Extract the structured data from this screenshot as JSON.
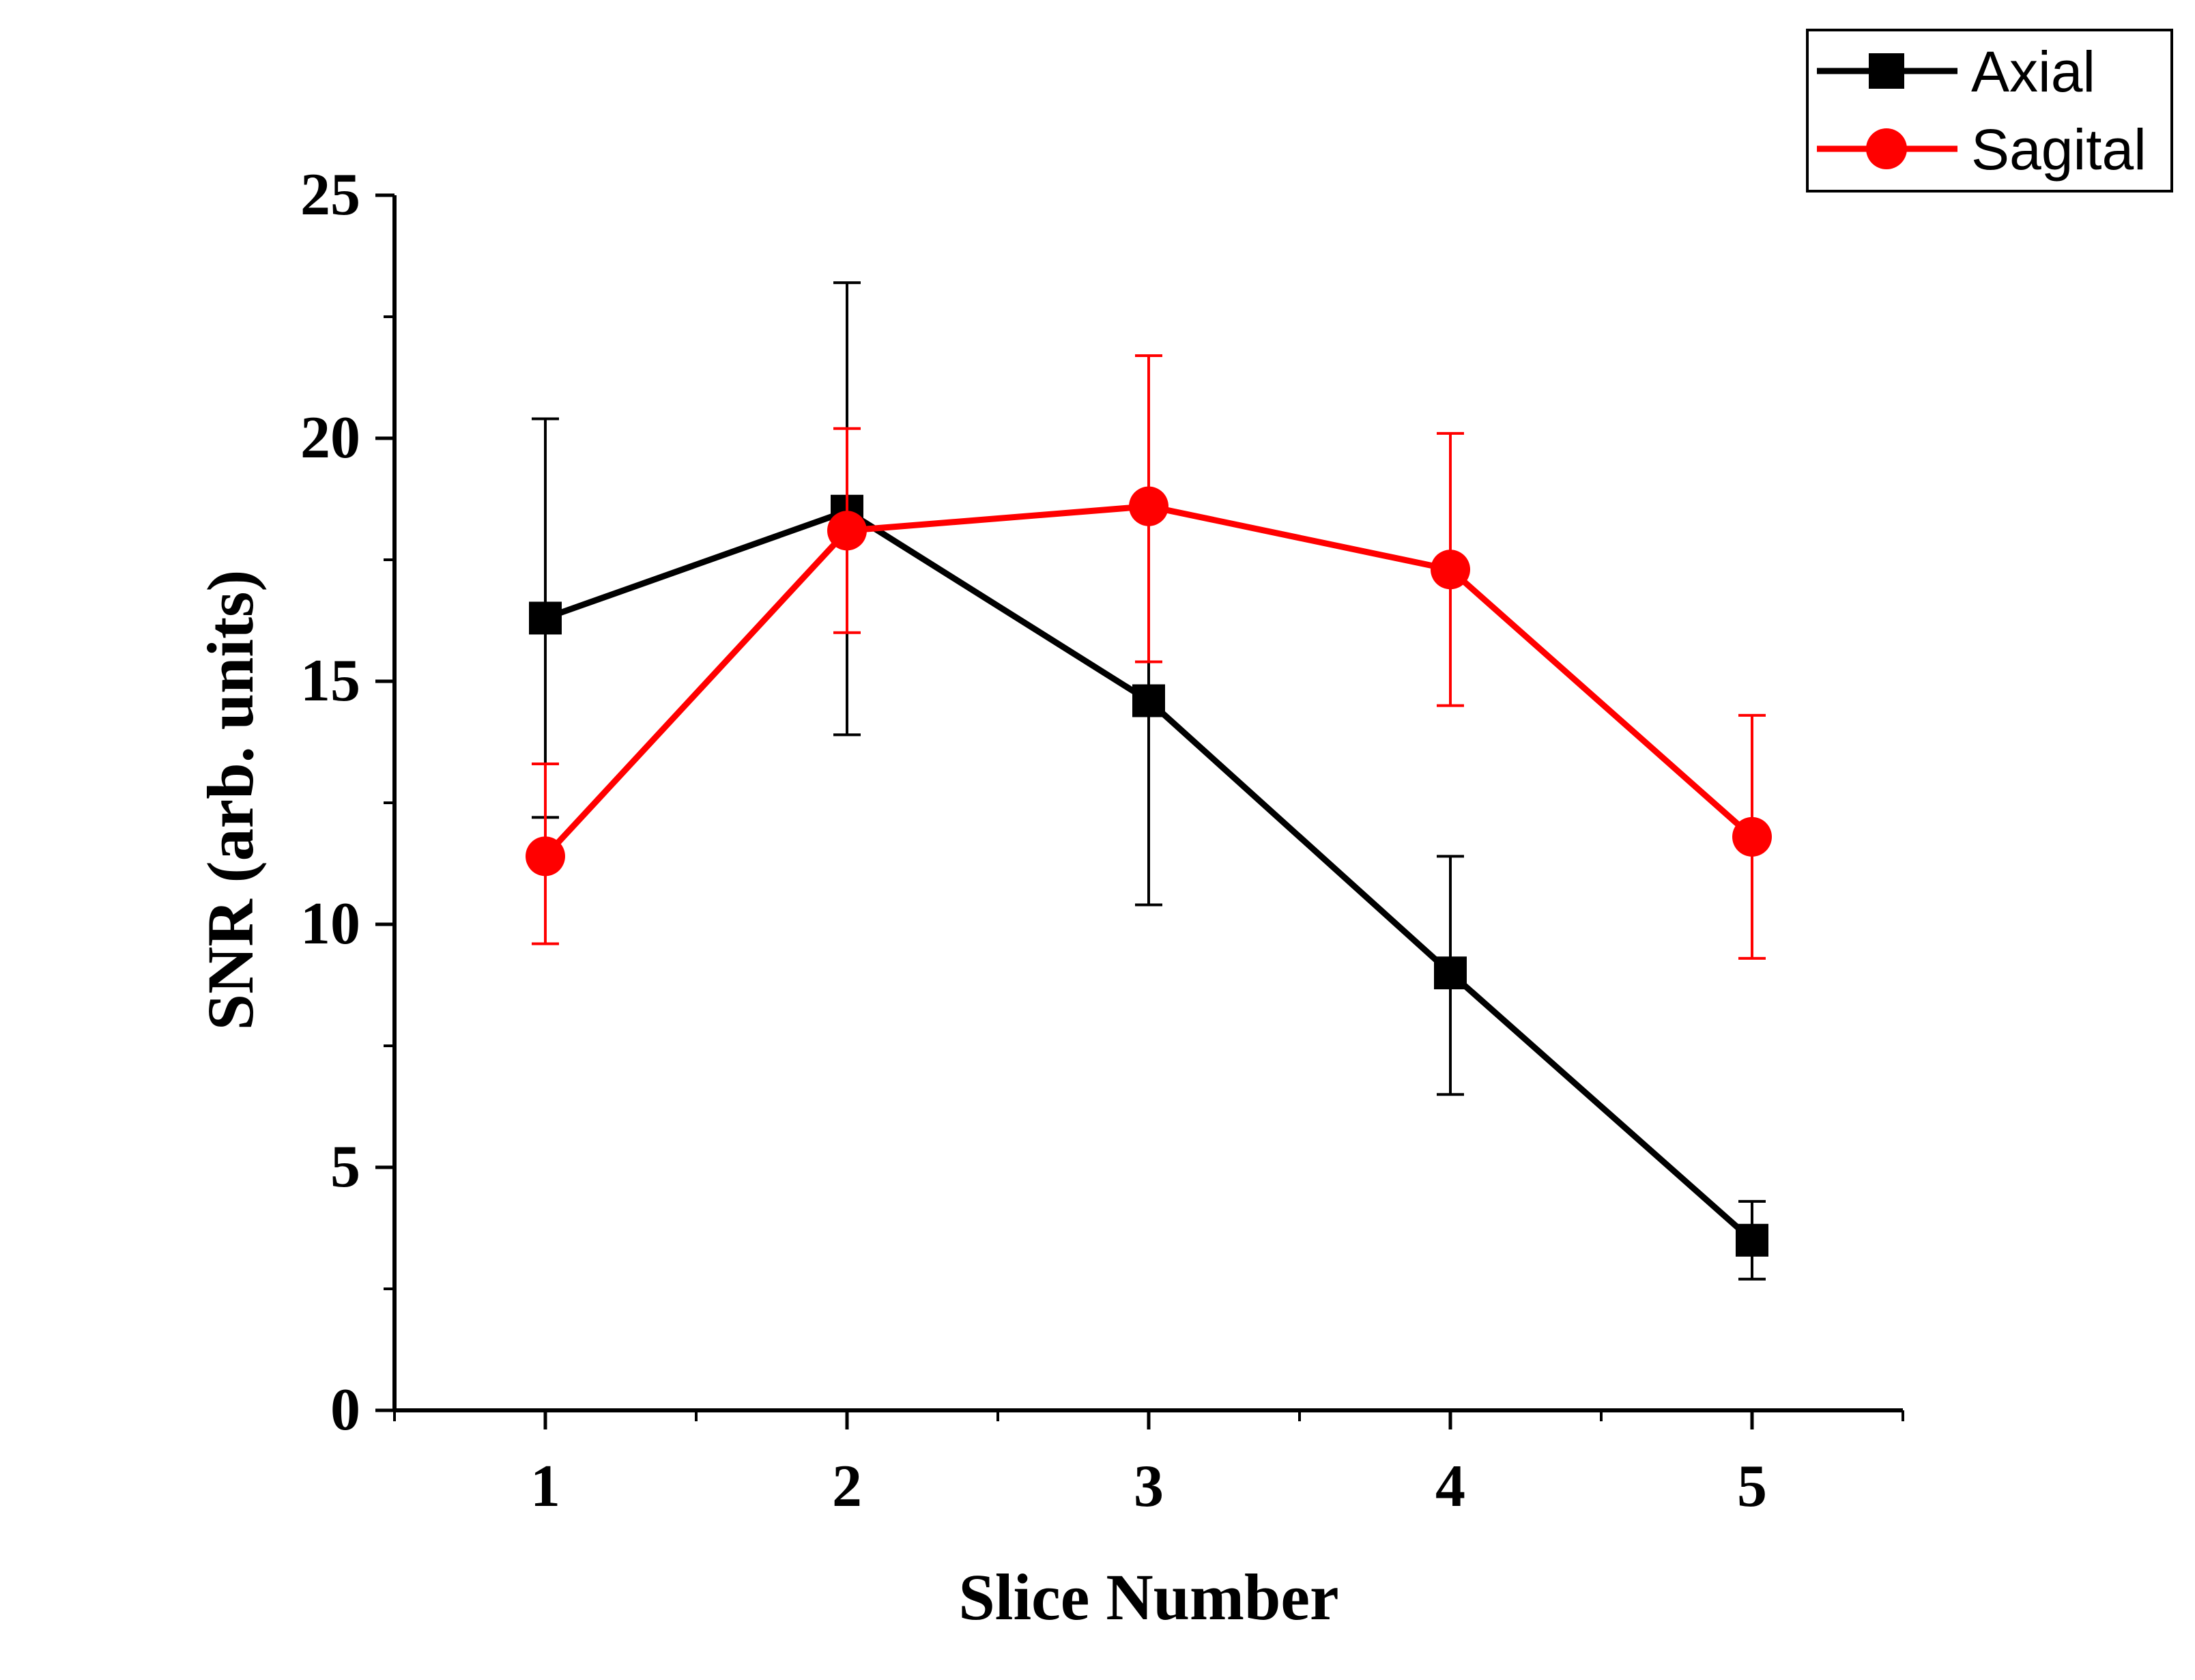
{
  "chart_data": {
    "type": "line",
    "title": "",
    "xlabel": "Slice Number",
    "ylabel": "SNR (arb. units)",
    "x": [
      1,
      2,
      3,
      4,
      5
    ],
    "xlim": [
      0.5,
      5.5
    ],
    "ylim": [
      0,
      25
    ],
    "xticks": [
      "1",
      "2",
      "3",
      "4",
      "5"
    ],
    "yticks": [
      "0",
      "5",
      "10",
      "15",
      "20",
      "25"
    ],
    "legend_position": "top-right",
    "grid": false,
    "series": [
      {
        "name": "Axial",
        "color": "#000000",
        "marker": "square",
        "values": [
          16.3,
          18.5,
          14.6,
          9.0,
          3.5
        ],
        "err_upper": [
          20.4,
          23.2,
          18.8,
          11.4,
          4.3
        ],
        "err_lower": [
          12.2,
          13.9,
          10.4,
          6.5,
          2.7
        ]
      },
      {
        "name": "Sagital",
        "color": "#ff0000",
        "marker": "circle",
        "values": [
          11.4,
          18.1,
          18.6,
          17.3,
          11.8
        ],
        "err_upper": [
          13.3,
          20.2,
          21.7,
          20.1,
          14.3
        ],
        "err_lower": [
          9.6,
          16.0,
          15.4,
          14.5,
          9.3
        ]
      }
    ]
  }
}
